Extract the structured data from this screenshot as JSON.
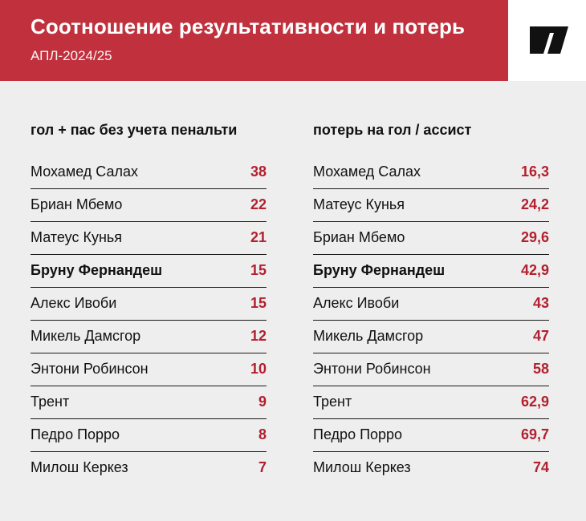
{
  "header": {
    "title": "Соотношение результативности и потерь",
    "subtitle": "АПЛ-2024/25"
  },
  "colors": {
    "brand_red": "#c0313d",
    "value_red": "#b3202f",
    "background": "#eeeeee"
  },
  "logo": {
    "icon": "brand-logo-icon"
  },
  "left_table": {
    "heading": "гол + пас без учета пенальти",
    "rows": [
      {
        "name": "Мохамед Салах",
        "value": "38"
      },
      {
        "name": "Бриан Мбемо",
        "value": "22"
      },
      {
        "name": "Матеус Кунья",
        "value": "21"
      },
      {
        "name": "Бруну Фернандеш",
        "value": "15"
      },
      {
        "name": "Алекс Ивоби",
        "value": "15"
      },
      {
        "name": "Микель Дамсгор",
        "value": "12"
      },
      {
        "name": "Энтони Робинсон",
        "value": "10"
      },
      {
        "name": "Трент",
        "value": "9"
      },
      {
        "name": "Педро Порро",
        "value": "8"
      },
      {
        "name": "Милош Керкез",
        "value": "7"
      }
    ]
  },
  "right_table": {
    "heading": "потерь на гол / ассист",
    "rows": [
      {
        "name": "Мохамед Салах",
        "value": "16,3"
      },
      {
        "name": "Матеус Кунья",
        "value": "24,2"
      },
      {
        "name": "Бриан Мбемо",
        "value": "29,6"
      },
      {
        "name": "Бруну Фернандеш",
        "value": "42,9"
      },
      {
        "name": "Алекс Ивоби",
        "value": "43"
      },
      {
        "name": "Микель Дамсгор",
        "value": "47"
      },
      {
        "name": "Энтони Робинсон",
        "value": "58"
      },
      {
        "name": "Трент",
        "value": "62,9"
      },
      {
        "name": "Педро Порро",
        "value": "69,7"
      },
      {
        "name": "Милош Керкез",
        "value": "74"
      }
    ]
  }
}
